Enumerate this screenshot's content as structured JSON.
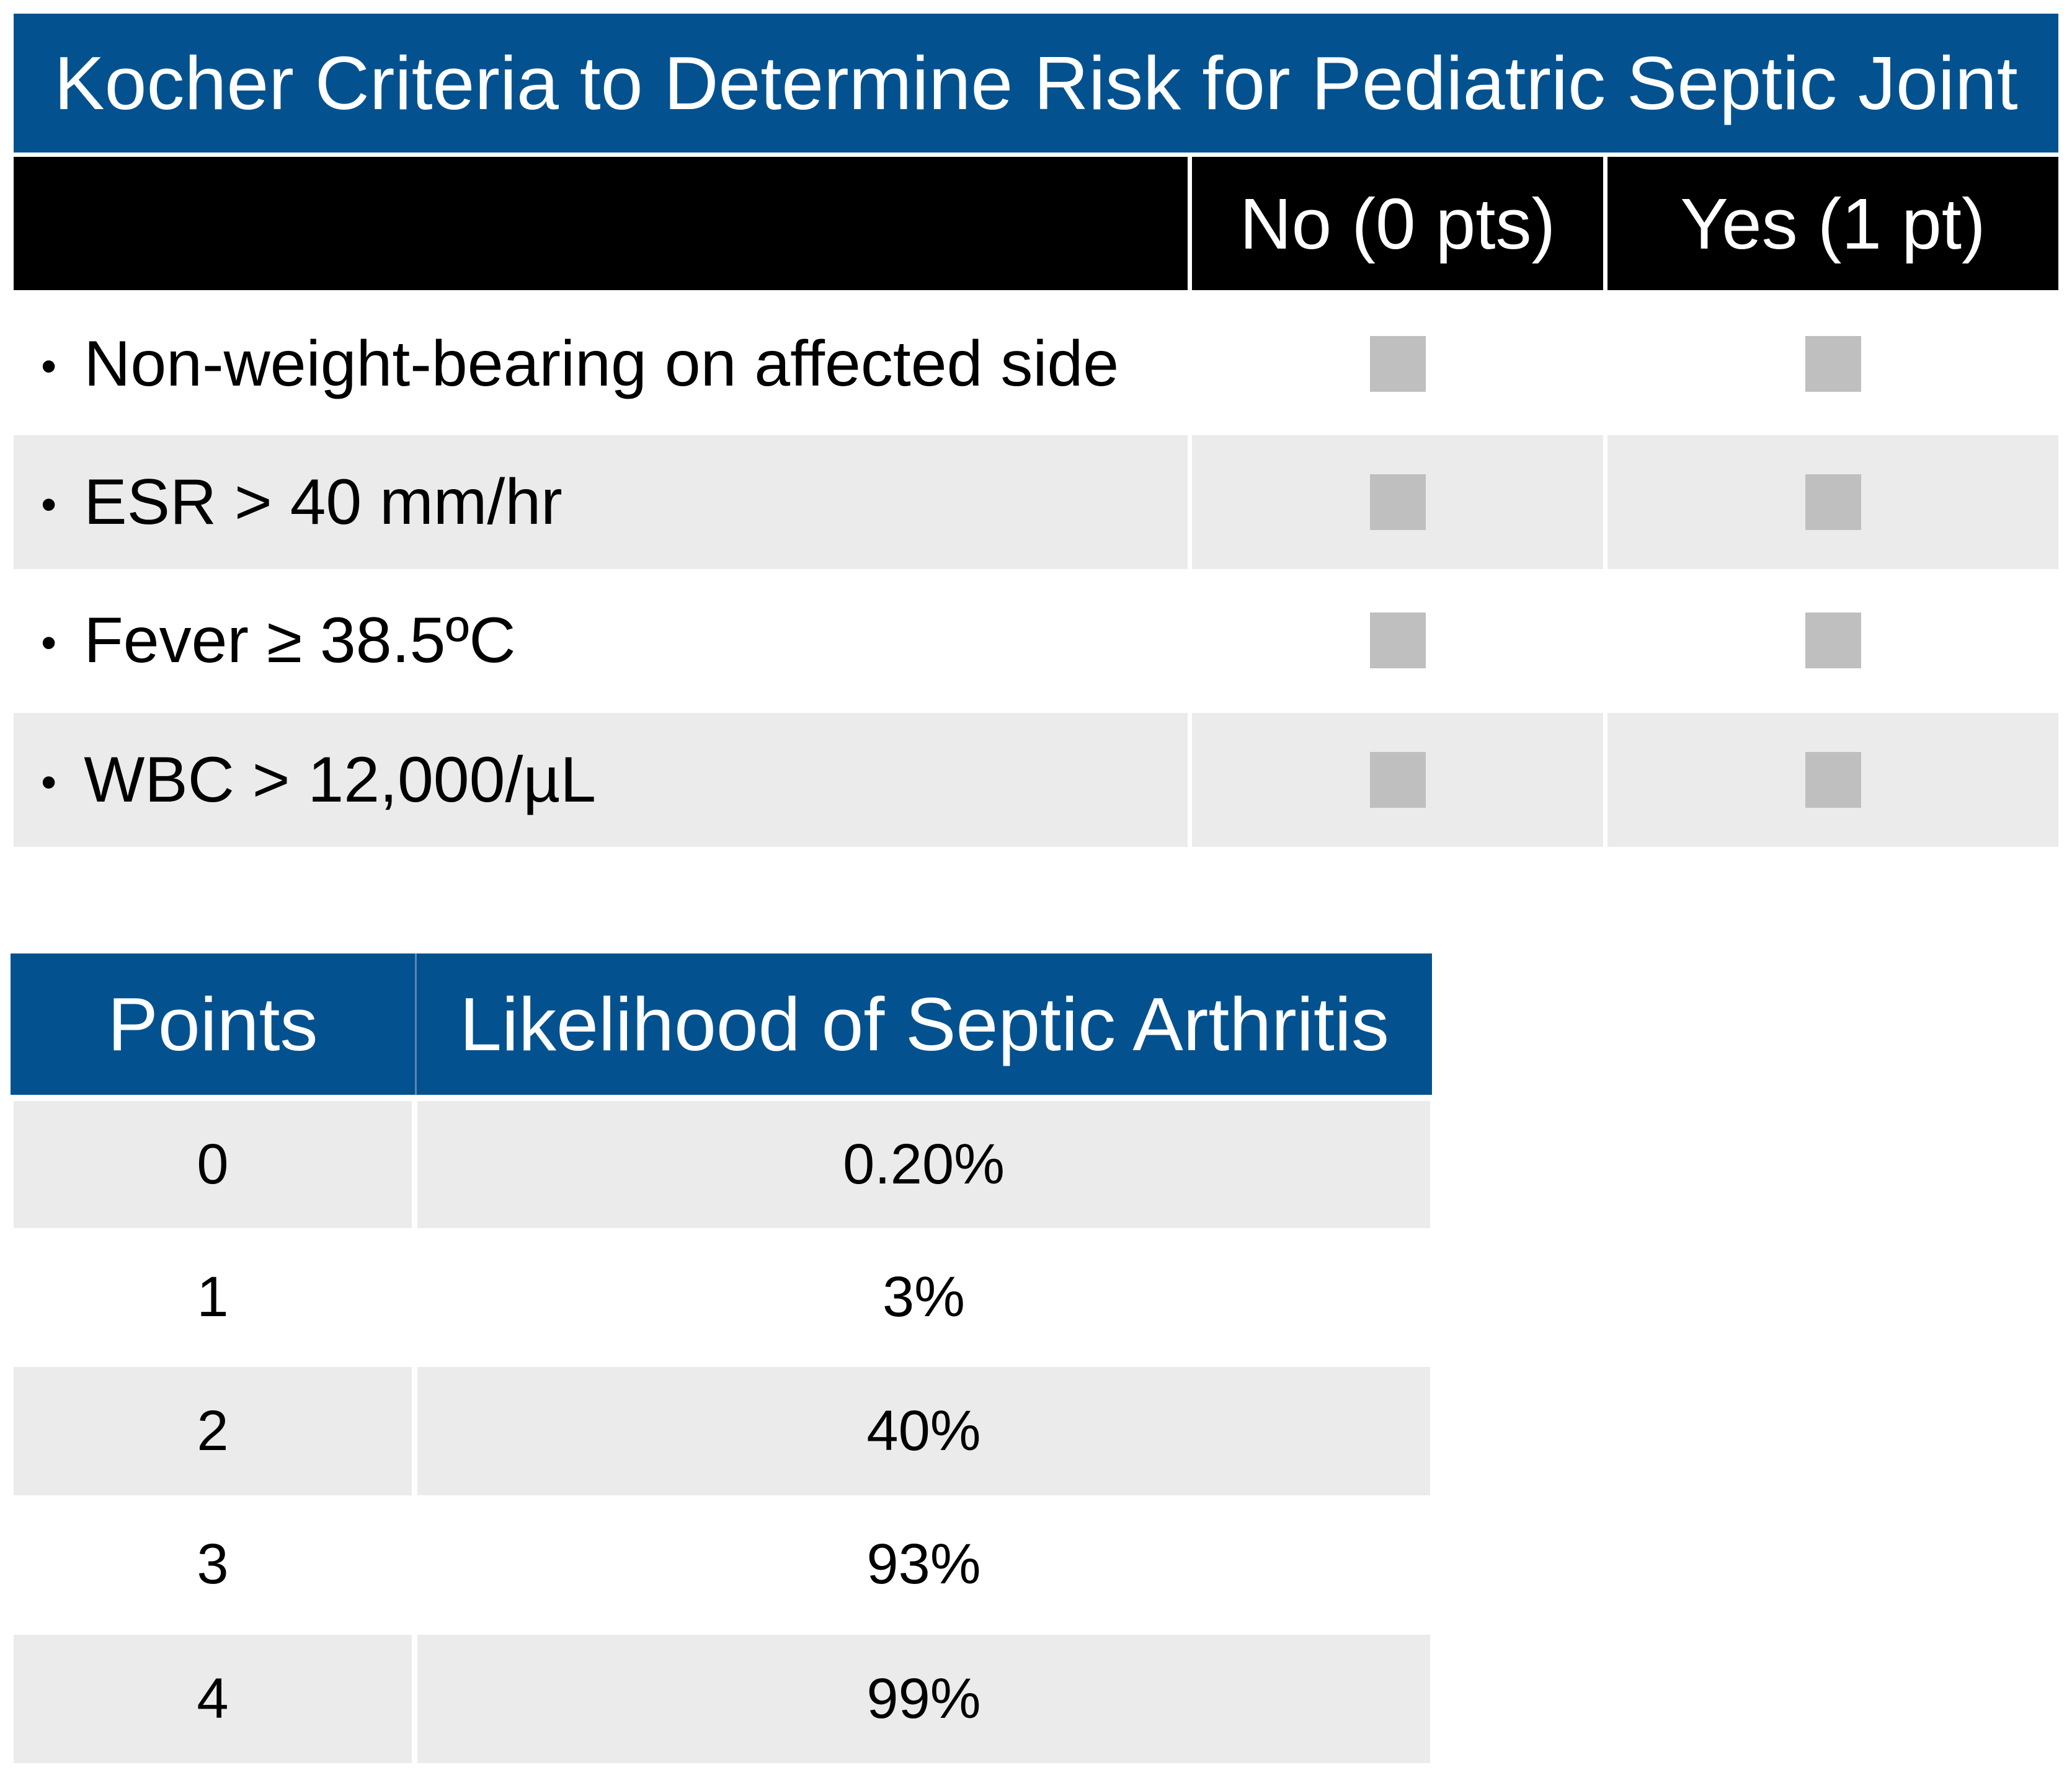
{
  "title": "Kocher Criteria to Determine Risk for Pediatric Septic Joint",
  "criteria_table": {
    "headers": [
      "",
      "No (0 pts)",
      "Yes (1 pt)"
    ],
    "rows": [
      {
        "bullet": "•",
        "label": "Non-weight-bearing on affected side"
      },
      {
        "bullet": "•",
        "label": "ESR > 40 mm/hr"
      },
      {
        "bullet": "•",
        "label": "Fever ≥ 38.5ºC"
      },
      {
        "bullet": "•",
        "label": "WBC > 12,000/µL"
      }
    ]
  },
  "likelihood_table": {
    "headers": [
      "Points",
      "Likelihood of Septic Arthritis"
    ],
    "rows": [
      {
        "points": "0",
        "likelihood": "0.20%"
      },
      {
        "points": "1",
        "likelihood": "3%"
      },
      {
        "points": "2",
        "likelihood": "40%"
      },
      {
        "points": "3",
        "likelihood": "93%"
      },
      {
        "points": "4",
        "likelihood": "99%"
      }
    ]
  },
  "colors": {
    "header_blue": "#03528f",
    "header_black": "#000000",
    "row_shade": "#ebebeb",
    "checkbox": "#bfbfbf"
  }
}
